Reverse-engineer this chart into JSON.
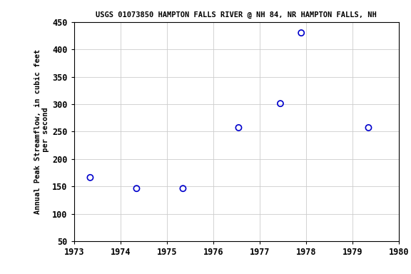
{
  "title": "USGS 01073850 HAMPTON FALLS RIVER @ NH 84, NR HAMPTON FALLS, NH",
  "ylabel_line1": "Annual Peak Streamflow, in cubic feet",
  "ylabel_line2": " per second",
  "x_data": [
    1973.35,
    1974.35,
    1975.35,
    1976.55,
    1977.45,
    1977.9,
    1979.35
  ],
  "y_data": [
    166,
    146,
    146,
    257,
    301,
    430,
    257
  ],
  "xlim": [
    1973,
    1980
  ],
  "ylim": [
    50,
    450
  ],
  "xticks": [
    1973,
    1974,
    1975,
    1976,
    1977,
    1978,
    1979,
    1980
  ],
  "yticks": [
    50,
    100,
    150,
    200,
    250,
    300,
    350,
    400,
    450
  ],
  "marker_color": "#0000cc",
  "marker_size": 35,
  "marker_lw": 1.2,
  "grid_color": "#cccccc",
  "bg_color": "#ffffff",
  "title_fontsize": 7.5,
  "label_fontsize": 7.5,
  "tick_fontsize": 8.5
}
